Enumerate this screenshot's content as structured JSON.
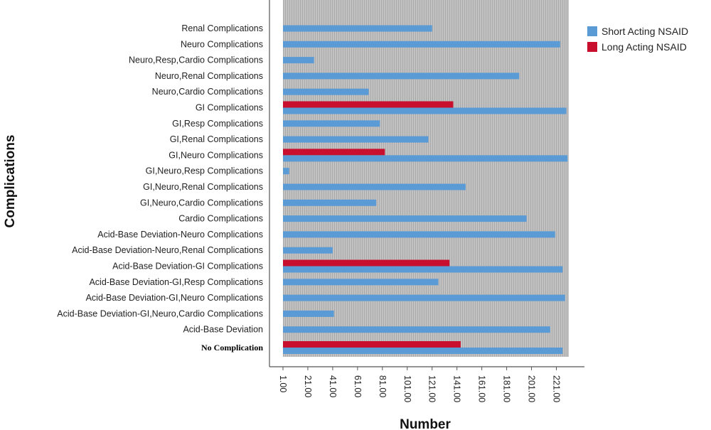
{
  "chart_data": {
    "type": "bar",
    "orientation": "horizontal",
    "xlabel": "Number",
    "ylabel": "Complications",
    "xlim": [
      1,
      231
    ],
    "x_ticks": [
      "1.00",
      "21.00",
      "41.00",
      "61.00",
      "81.00",
      "101.00",
      "121.00",
      "141.00",
      "161.00",
      "181.00",
      "201.00",
      "221.00"
    ],
    "categories": [
      "Renal Complications",
      "Neuro Complications",
      "Neuro,Resp,Cardio Complications",
      "Neuro,Renal Complications",
      "Neuro,Cardio Complications",
      "GI Complications",
      "GI,Resp Complications",
      "GI,Renal Complications",
      "GI,Neuro Complications",
      "GI,Neuro,Resp Complications",
      "GI,Neuro,Renal Complications",
      "GI,Neuro,Cardio Complications",
      "Cardio Complications",
      "Acid-Base Deviation-Neuro Complications",
      "Acid-Base Deviation-Neuro,Renal Complications",
      "Acid-Base Deviation-GI Complications",
      "Acid-Base Deviation-GI,Resp Complications",
      "Acid-Base Deviation-GI,Neuro Complications",
      "Acid-Base Deviation-GI,Neuro,Cardio Complications",
      "Acid-Base Deviation",
      "No Complication"
    ],
    "series": [
      {
        "name": "Short Acting NSAID",
        "color": "#5b9bd5",
        "values": [
          121,
          224,
          26,
          191,
          70,
          229,
          79,
          118,
          230,
          6,
          148,
          76,
          197,
          220,
          41,
          226,
          126,
          228,
          42,
          216,
          226
        ]
      },
      {
        "name": "Long Acting NSAID",
        "color": "#c8102e",
        "values": [
          null,
          null,
          null,
          null,
          null,
          138,
          null,
          null,
          83,
          null,
          null,
          null,
          null,
          null,
          null,
          135,
          null,
          null,
          null,
          null,
          144
        ]
      }
    ],
    "legend_position": "top-right",
    "grid": true,
    "plot_background": "#b8b8b8"
  }
}
